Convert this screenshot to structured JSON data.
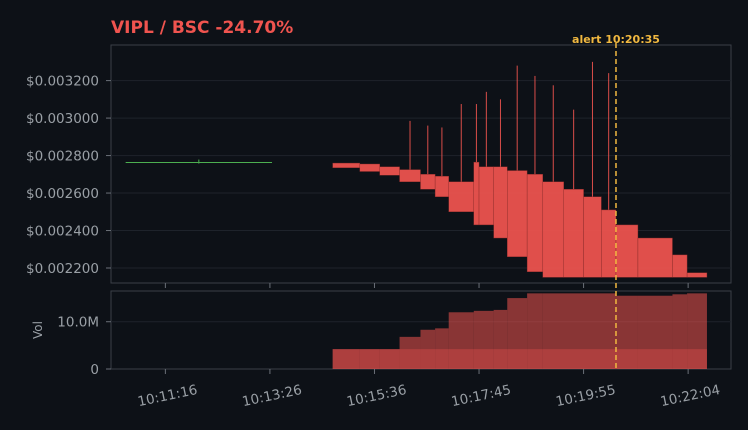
{
  "chart_data": {
    "type": "candlestick",
    "title": "VIPL / BSC  -24.70%",
    "colors": {
      "background": "#0d1117",
      "title": "#f0544f",
      "down": "#f0544f",
      "up": "#4caf50",
      "alert": "#f0b840",
      "grid": "#1e232b"
    },
    "price_axis": {
      "ylim": [
        0.00212,
        0.00339
      ],
      "ticks": [
        "$0.002200",
        "$0.002400",
        "$0.002600",
        "$0.002800",
        "$0.003000",
        "$0.003200"
      ],
      "tick_values": [
        0.0022,
        0.0024,
        0.0026,
        0.0028,
        0.003,
        0.0032
      ]
    },
    "volume_axis": {
      "ylabel": "Vol",
      "ylim": [
        0,
        16.5
      ],
      "ticks": [
        "0",
        "10.0M"
      ],
      "tick_values": [
        0,
        10
      ]
    },
    "time_axis": {
      "xlim": [
        -0.52,
        5.41
      ],
      "ticks": [
        "10:11:16",
        "10:13:26",
        "10:15:36",
        "10:17:45",
        "10:19:55",
        "10:22:04"
      ],
      "tick_positions": [
        0,
        1,
        2,
        3,
        4,
        5
      ]
    },
    "alert": {
      "label": "alert 10:20:35",
      "x": 4.31
    },
    "series": [
      {
        "name": "",
        "kind": "line",
        "x": [
          -0.38,
          1.02
        ],
        "y": [
          0.002763,
          0.002763
        ],
        "color": "#4caf50"
      },
      {
        "name": "",
        "kind": "tick",
        "x": [
          0.32
        ],
        "y": [
          0.002768
        ]
      },
      {
        "name": "",
        "kind": "candles",
        "candles": [
          {
            "x0": 1.6,
            "x1": 1.86,
            "open": 0.00276,
            "close": 0.002735,
            "high": 0.00276,
            "low": 0.002735
          },
          {
            "x0": 1.86,
            "x1": 2.05,
            "open": 0.002755,
            "close": 0.002715,
            "high": 0.002755,
            "low": 0.002715
          },
          {
            "x0": 2.05,
            "x1": 2.24,
            "open": 0.00274,
            "close": 0.002695,
            "high": 0.00274,
            "low": 0.002695
          },
          {
            "x0": 2.24,
            "x1": 2.44,
            "open": 0.002725,
            "close": 0.00266,
            "high": 0.002985,
            "low": 0.00266
          },
          {
            "x0": 2.44,
            "x1": 2.58,
            "open": 0.0027,
            "close": 0.00262,
            "high": 0.00296,
            "low": 0.00262
          },
          {
            "x0": 2.58,
            "x1": 2.71,
            "open": 0.00269,
            "close": 0.00258,
            "high": 0.00295,
            "low": 0.00258
          },
          {
            "x0": 2.71,
            "x1": 2.95,
            "open": 0.00266,
            "close": 0.0025,
            "high": 0.003075,
            "low": 0.0025
          },
          {
            "x0": 2.95,
            "x1": 3.0,
            "open": 0.002765,
            "close": 0.00243,
            "high": 0.003075,
            "low": 0.00243
          },
          {
            "x0": 3.0,
            "x1": 3.14,
            "open": 0.00274,
            "close": 0.00243,
            "high": 0.00314,
            "low": 0.00243
          },
          {
            "x0": 3.14,
            "x1": 3.27,
            "open": 0.00274,
            "close": 0.00236,
            "high": 0.0031,
            "low": 0.00236
          },
          {
            "x0": 3.27,
            "x1": 3.46,
            "open": 0.00272,
            "close": 0.00226,
            "high": 0.00328,
            "low": 0.00226
          },
          {
            "x0": 3.46,
            "x1": 3.61,
            "open": 0.0027,
            "close": 0.00218,
            "high": 0.003225,
            "low": 0.00218
          },
          {
            "x0": 3.61,
            "x1": 3.81,
            "open": 0.00266,
            "close": 0.00215,
            "high": 0.003175,
            "low": 0.00215
          },
          {
            "x0": 3.81,
            "x1": 4.0,
            "open": 0.00262,
            "close": 0.00215,
            "high": 0.003045,
            "low": 0.00215
          },
          {
            "x0": 4.0,
            "x1": 4.17,
            "open": 0.00258,
            "close": 0.00215,
            "high": 0.0033,
            "low": 0.00215
          },
          {
            "x0": 4.17,
            "x1": 4.31,
            "open": 0.00251,
            "close": 0.00215,
            "high": 0.00324,
            "low": 0.00215
          },
          {
            "x0": 4.31,
            "x1": 4.52,
            "open": 0.00243,
            "close": 0.00215,
            "high": 0.00243,
            "low": 0.00215
          },
          {
            "x0": 4.52,
            "x1": 4.85,
            "open": 0.00236,
            "close": 0.00215,
            "high": 0.00236,
            "low": 0.00215
          },
          {
            "x0": 4.85,
            "x1": 4.99,
            "open": 0.00227,
            "close": 0.00215,
            "high": 0.00227,
            "low": 0.00215
          },
          {
            "x0": 4.99,
            "x1": 5.18,
            "open": 0.002175,
            "close": 0.00215,
            "high": 0.002175,
            "low": 0.00215
          }
        ]
      },
      {
        "name": "",
        "kind": "volume",
        "bars": [
          {
            "x0": 1.6,
            "x1": 1.86,
            "v": 4.2
          },
          {
            "x0": 1.86,
            "x1": 2.05,
            "v": 4.2
          },
          {
            "x0": 2.05,
            "x1": 2.24,
            "v": 4.2
          },
          {
            "x0": 2.24,
            "x1": 2.44,
            "v": 6.8
          },
          {
            "x0": 2.44,
            "x1": 2.58,
            "v": 8.3
          },
          {
            "x0": 2.58,
            "x1": 2.71,
            "v": 8.6
          },
          {
            "x0": 2.71,
            "x1": 2.95,
            "v": 12.0
          },
          {
            "x0": 2.95,
            "x1": 3.14,
            "v": 12.3
          },
          {
            "x0": 3.14,
            "x1": 3.27,
            "v": 12.5
          },
          {
            "x0": 3.27,
            "x1": 3.46,
            "v": 15.0
          },
          {
            "x0": 3.46,
            "x1": 3.61,
            "v": 16.0
          },
          {
            "x0": 3.61,
            "x1": 4.31,
            "v": 16.0
          },
          {
            "x0": 4.31,
            "x1": 4.52,
            "v": 15.5
          },
          {
            "x0": 4.52,
            "x1": 4.85,
            "v": 15.5
          },
          {
            "x0": 4.85,
            "x1": 4.99,
            "v": 15.8
          },
          {
            "x0": 4.99,
            "x1": 5.18,
            "v": 16.0
          }
        ]
      }
    ]
  }
}
